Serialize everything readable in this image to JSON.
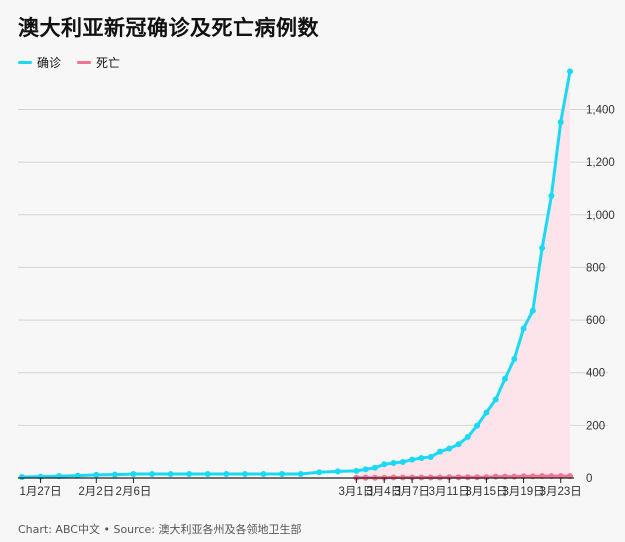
{
  "title": "澳大利亚新冠确诊及死亡病例数",
  "legend": {
    "confirmed": "确诊",
    "deaths": "死亡"
  },
  "source": "Chart: ABC中文 • Source: 澳大利亚各州及各领地卫生部",
  "colors": {
    "confirmed": "#1ad9f2",
    "deaths": "#f27294",
    "area": "#fde3ea",
    "grid": "#d6d6d6",
    "axis": "#222222"
  },
  "chart_data": {
    "type": "line",
    "title": "澳大利亚新冠确诊及死亡病例数",
    "ylim": [
      0,
      1550
    ],
    "y_ticks": [
      0,
      200,
      400,
      600,
      800,
      1000,
      1200,
      1400
    ],
    "y_tick_labels": [
      "0",
      "200",
      "400",
      "600",
      "800",
      "1,000",
      "1,200",
      "1,400"
    ],
    "x_tick_labels": [
      {
        "date": "2020-01-27",
        "label": "1月27日"
      },
      {
        "date": "2020-02-02",
        "label": "2月2日"
      },
      {
        "date": "2020-02-06",
        "label": "2月6日"
      },
      {
        "date": "2020-03-01",
        "label": "3月1日"
      },
      {
        "date": "2020-03-04",
        "label": "3月4日"
      },
      {
        "date": "2020-03-07",
        "label": "3月7日"
      },
      {
        "date": "2020-03-11",
        "label": "3月11日"
      },
      {
        "date": "2020-03-15",
        "label": "3月15日"
      },
      {
        "date": "2020-03-19",
        "label": "3月19日"
      },
      {
        "date": "2020-03-23",
        "label": "3月23日"
      }
    ],
    "x_dates": [
      "2020-01-25",
      "2020-01-27",
      "2020-01-29",
      "2020-01-31",
      "2020-02-02",
      "2020-02-04",
      "2020-02-06",
      "2020-02-08",
      "2020-02-10",
      "2020-02-12",
      "2020-02-14",
      "2020-02-16",
      "2020-02-18",
      "2020-02-20",
      "2020-02-22",
      "2020-02-24",
      "2020-02-26",
      "2020-02-28",
      "2020-03-01",
      "2020-03-02",
      "2020-03-03",
      "2020-03-04",
      "2020-03-05",
      "2020-03-06",
      "2020-03-07",
      "2020-03-08",
      "2020-03-09",
      "2020-03-10",
      "2020-03-11",
      "2020-03-12",
      "2020-03-13",
      "2020-03-14",
      "2020-03-15",
      "2020-03-16",
      "2020-03-17",
      "2020-03-18",
      "2020-03-19",
      "2020-03-20",
      "2020-03-21",
      "2020-03-22",
      "2020-03-23",
      "2020-03-24"
    ],
    "series": [
      {
        "name": "确诊",
        "values": [
          4,
          5,
          7,
          9,
          12,
          13,
          15,
          15,
          15,
          15,
          15,
          15,
          15,
          15,
          15,
          15,
          22,
          25,
          27,
          33,
          39,
          52,
          57,
          61,
          70,
          76,
          80,
          100,
          112,
          128,
          156,
          199,
          249,
          298,
          377,
          452,
          568,
          636,
          874,
          1072,
          1352,
          1545
        ]
      },
      {
        "name": "死亡",
        "values": [
          null,
          null,
          null,
          null,
          null,
          null,
          null,
          null,
          null,
          null,
          null,
          null,
          null,
          null,
          null,
          null,
          null,
          null,
          1,
          1,
          1,
          1,
          2,
          2,
          2,
          2,
          2,
          2,
          3,
          3,
          3,
          3,
          3,
          5,
          5,
          5,
          6,
          6,
          7,
          7,
          7,
          7
        ]
      }
    ]
  }
}
